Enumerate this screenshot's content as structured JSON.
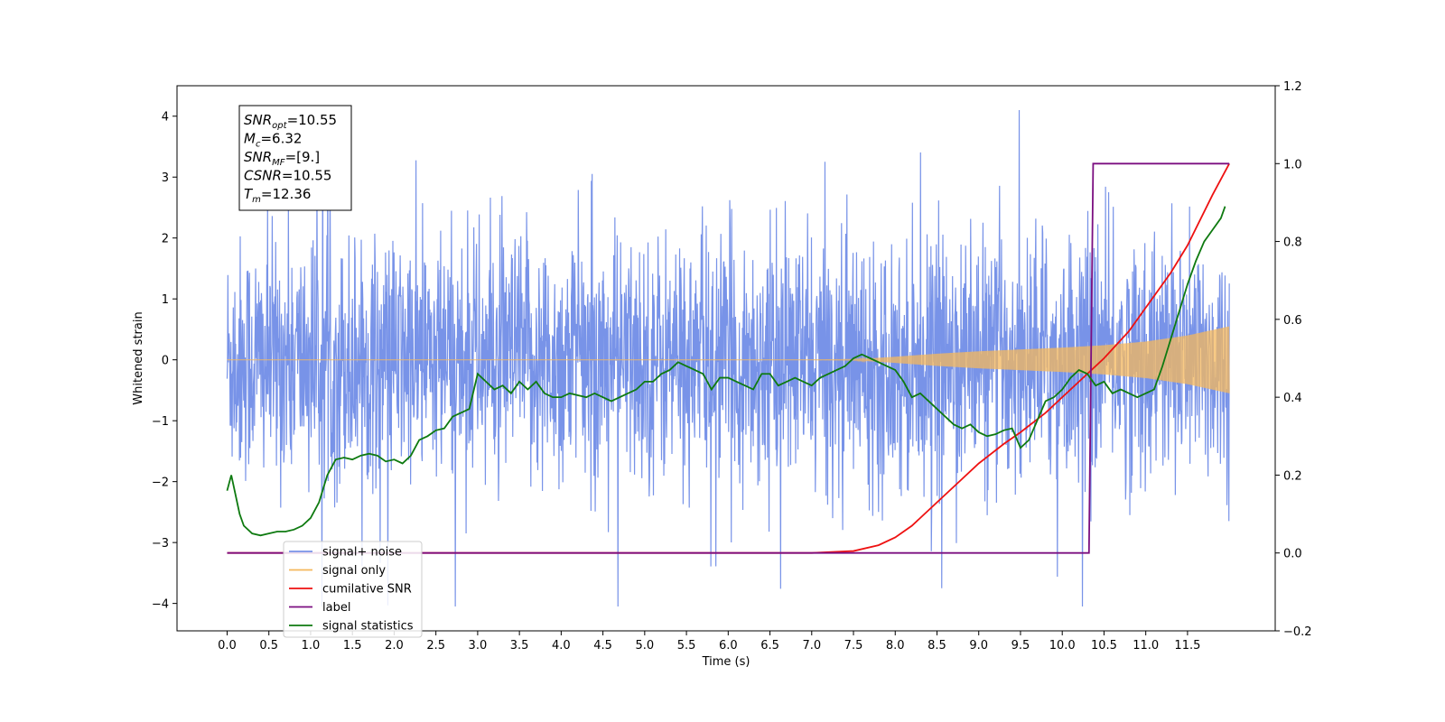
{
  "chart_data": {
    "type": "line",
    "xlabel": "Time (s)",
    "ylabel": "Whitened strain",
    "xlim": [
      -0.6,
      12.55
    ],
    "ylim": [
      -4.45,
      4.5
    ],
    "y2lim": [
      -0.2,
      1.2
    ],
    "x_ticks": [
      0.0,
      0.5,
      1.0,
      1.5,
      2.0,
      2.5,
      3.0,
      3.5,
      4.0,
      4.5,
      5.0,
      5.5,
      6.0,
      6.5,
      7.0,
      7.5,
      8.0,
      8.5,
      9.0,
      9.5,
      10.0,
      10.5,
      11.0,
      11.5
    ],
    "x_tick_labels": [
      "0.0",
      "0.5",
      "1.0",
      "1.5",
      "2.0",
      "2.5",
      "3.0",
      "3.5",
      "4.0",
      "4.5",
      "5.0",
      "5.5",
      "6.0",
      "6.5",
      "7.0",
      "7.5",
      "8.0",
      "8.5",
      "9.0",
      "9.5",
      "10.0",
      "10.5",
      "11.0",
      "11.5"
    ],
    "y_ticks": [
      -4,
      -3,
      -2,
      -1,
      0,
      1,
      2,
      3,
      4
    ],
    "y_tick_labels": [
      "−4",
      "−3",
      "−2",
      "−1",
      "0",
      "1",
      "2",
      "3",
      "4"
    ],
    "y2_ticks": [
      -0.2,
      0.0,
      0.2,
      0.4,
      0.6,
      0.8,
      1.0,
      1.2
    ],
    "y2_tick_labels": [
      "−0.2",
      "0.0",
      "0.2",
      "0.4",
      "0.6",
      "0.8",
      "1.0",
      "1.2"
    ],
    "grid": false,
    "legend_position": "lower-left",
    "annotation": [
      {
        "base": "SNR",
        "sub": "opt",
        "value": "=10.55"
      },
      {
        "base": "M",
        "sub": "c",
        "value": "=6.32"
      },
      {
        "base": "SNR",
        "sub": "MF",
        "value": "=[9.]"
      },
      {
        "base": "CSNR",
        "sub": "",
        "value": "=10.55"
      },
      {
        "base": "T",
        "sub": "m",
        "value": "=12.36"
      }
    ],
    "series": [
      {
        "name": "signal+ noise",
        "color": "#7893e8",
        "axis": "left",
        "kind": "noise",
        "x_range": [
          0.0,
          12.0
        ],
        "approx_envelope": [
          -2.3,
          2.3
        ],
        "max_spike": 4.1,
        "min_spike": -4.05
      },
      {
        "name": "signal only",
        "color": "#f5b85c",
        "axis": "left",
        "kind": "chirp",
        "x_range": [
          0.0,
          12.0
        ],
        "amplitude_envelope": {
          "x": [
            0.0,
            7.0,
            7.5,
            8.0,
            8.5,
            9.0,
            9.5,
            10.0,
            10.5,
            11.0,
            11.5,
            12.0
          ],
          "y": [
            0.0,
            0.0,
            0.005,
            0.05,
            0.1,
            0.14,
            0.17,
            0.2,
            0.24,
            0.3,
            0.4,
            0.55
          ]
        }
      },
      {
        "name": "cumilative SNR",
        "color": "#ee1111",
        "axis": "right",
        "x": [
          0.0,
          7.0,
          7.5,
          7.8,
          8.0,
          8.2,
          8.5,
          8.8,
          9.0,
          9.3,
          9.5,
          9.8,
          10.0,
          10.3,
          10.5,
          10.8,
          11.0,
          11.3,
          11.5,
          11.8,
          12.0
        ],
        "y": [
          0.0,
          0.0,
          0.005,
          0.02,
          0.04,
          0.07,
          0.13,
          0.19,
          0.23,
          0.28,
          0.31,
          0.36,
          0.4,
          0.46,
          0.5,
          0.57,
          0.63,
          0.72,
          0.79,
          0.92,
          1.0
        ]
      },
      {
        "name": "label",
        "color": "#7b0f80",
        "axis": "right",
        "x": [
          0.0,
          10.32,
          10.37,
          12.0
        ],
        "y": [
          0.0,
          0.0,
          1.0,
          1.0
        ]
      },
      {
        "name": "signal statistics",
        "color": "#0e7a10",
        "axis": "right",
        "x": [
          0.0,
          0.05,
          0.1,
          0.15,
          0.2,
          0.3,
          0.4,
          0.5,
          0.6,
          0.7,
          0.8,
          0.9,
          1.0,
          1.1,
          1.2,
          1.3,
          1.4,
          1.5,
          1.6,
          1.7,
          1.8,
          1.9,
          2.0,
          2.1,
          2.2,
          2.3,
          2.4,
          2.5,
          2.6,
          2.7,
          2.8,
          2.9,
          3.0,
          3.1,
          3.2,
          3.3,
          3.4,
          3.5,
          3.6,
          3.7,
          3.8,
          3.9,
          4.0,
          4.1,
          4.2,
          4.3,
          4.4,
          4.5,
          4.6,
          4.7,
          4.8,
          4.9,
          5.0,
          5.1,
          5.2,
          5.3,
          5.4,
          5.5,
          5.6,
          5.7,
          5.8,
          5.9,
          6.0,
          6.1,
          6.2,
          6.3,
          6.4,
          6.5,
          6.6,
          6.7,
          6.8,
          6.9,
          7.0,
          7.1,
          7.2,
          7.3,
          7.4,
          7.5,
          7.6,
          7.7,
          7.8,
          7.9,
          8.0,
          8.1,
          8.2,
          8.3,
          8.4,
          8.5,
          8.6,
          8.7,
          8.8,
          8.9,
          9.0,
          9.1,
          9.2,
          9.3,
          9.4,
          9.5,
          9.6,
          9.7,
          9.8,
          9.9,
          10.0,
          10.1,
          10.2,
          10.3,
          10.4,
          10.5,
          10.6,
          10.7,
          10.8,
          10.9,
          11.0,
          11.1,
          11.2,
          11.3,
          11.4,
          11.5,
          11.6,
          11.7,
          11.8,
          11.9,
          11.95
        ],
        "y": [
          0.16,
          0.2,
          0.15,
          0.1,
          0.07,
          0.05,
          0.045,
          0.05,
          0.055,
          0.055,
          0.06,
          0.07,
          0.09,
          0.13,
          0.2,
          0.24,
          0.245,
          0.24,
          0.25,
          0.255,
          0.25,
          0.235,
          0.24,
          0.23,
          0.25,
          0.29,
          0.3,
          0.315,
          0.32,
          0.35,
          0.36,
          0.37,
          0.46,
          0.44,
          0.42,
          0.43,
          0.41,
          0.44,
          0.42,
          0.44,
          0.41,
          0.4,
          0.4,
          0.41,
          0.405,
          0.4,
          0.41,
          0.4,
          0.39,
          0.4,
          0.41,
          0.42,
          0.44,
          0.44,
          0.46,
          0.47,
          0.49,
          0.48,
          0.47,
          0.46,
          0.42,
          0.45,
          0.45,
          0.44,
          0.43,
          0.42,
          0.46,
          0.46,
          0.43,
          0.44,
          0.45,
          0.44,
          0.43,
          0.45,
          0.46,
          0.47,
          0.48,
          0.5,
          0.51,
          0.5,
          0.49,
          0.48,
          0.47,
          0.44,
          0.4,
          0.41,
          0.39,
          0.37,
          0.35,
          0.33,
          0.32,
          0.33,
          0.31,
          0.3,
          0.305,
          0.315,
          0.32,
          0.27,
          0.29,
          0.34,
          0.39,
          0.4,
          0.42,
          0.45,
          0.47,
          0.46,
          0.43,
          0.44,
          0.41,
          0.42,
          0.41,
          0.4,
          0.41,
          0.42,
          0.48,
          0.55,
          0.62,
          0.69,
          0.75,
          0.8,
          0.83,
          0.86,
          0.89
        ]
      }
    ]
  }
}
